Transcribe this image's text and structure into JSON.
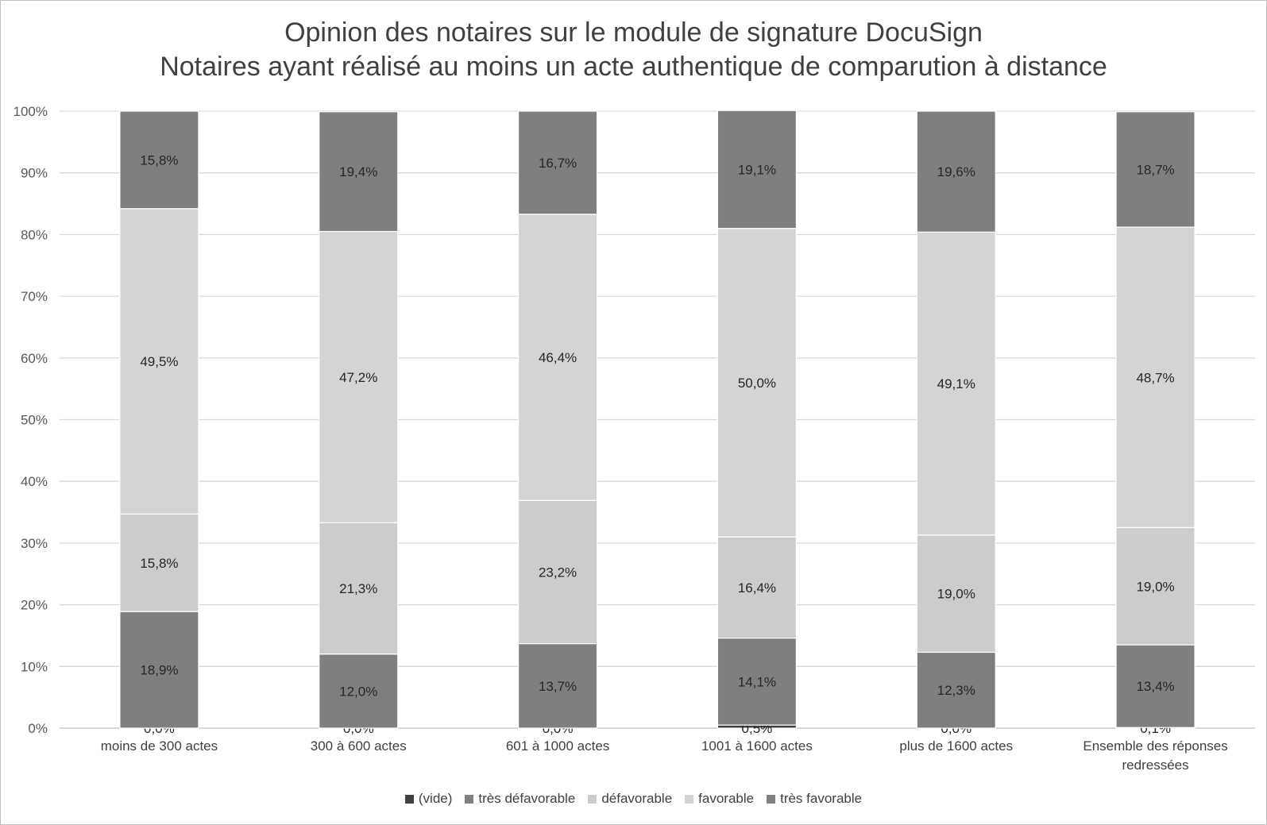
{
  "chart_data": {
    "type": "bar",
    "stacked": true,
    "percent": true,
    "title": "Opinion des notaires sur le module de signature DocuSign",
    "subtitle": "Notaires ayant réalisé au moins un acte authentique de comparution à distance",
    "categories": [
      [
        "moins de 300 actes"
      ],
      [
        "300 à 600 actes"
      ],
      [
        "601 à 1000 actes"
      ],
      [
        "1001 à 1600 actes"
      ],
      [
        "plus de 1600 actes"
      ],
      [
        "Ensemble des réponses",
        "redressées"
      ]
    ],
    "y_ticks": [
      "0%",
      "10%",
      "20%",
      "30%",
      "40%",
      "50%",
      "60%",
      "70%",
      "80%",
      "90%",
      "100%"
    ],
    "ylim": [
      0,
      100
    ],
    "grid": true,
    "legend_position": "bottom",
    "series": [
      {
        "name": "(vide)",
        "color": "#404040",
        "values": [
          0.0,
          0.0,
          0.0,
          0.5,
          0.0,
          0.1
        ],
        "labels": [
          "0,0%",
          "0,0%",
          "0,0%",
          "0,5%",
          "0,0%",
          "0,1%"
        ]
      },
      {
        "name": "très défavorable",
        "color": "#7f7f7f",
        "values": [
          18.9,
          12.0,
          13.7,
          14.1,
          12.3,
          13.4
        ],
        "labels": [
          "18,9%",
          "12,0%",
          "13,7%",
          "14,1%",
          "12,3%",
          "13,4%"
        ]
      },
      {
        "name": "défavorable",
        "color": "#cccccc",
        "values": [
          15.8,
          21.3,
          23.2,
          16.4,
          19.0,
          19.0
        ],
        "labels": [
          "15,8%",
          "21,3%",
          "23,2%",
          "16,4%",
          "19,0%",
          "19,0%"
        ]
      },
      {
        "name": "favorable",
        "color": "#d4d4d4",
        "values": [
          49.5,
          47.2,
          46.4,
          50.0,
          49.1,
          48.7
        ],
        "labels": [
          "49,5%",
          "47,2%",
          "46,4%",
          "50,0%",
          "49,1%",
          "48,7%"
        ]
      },
      {
        "name": "très favorable",
        "color": "#7f7f7f",
        "values": [
          15.8,
          19.4,
          16.7,
          19.1,
          19.6,
          18.7
        ],
        "labels": [
          "15,8%",
          "19,4%",
          "16,7%",
          "19,1%",
          "19,6%",
          "18,7%"
        ]
      }
    ]
  }
}
